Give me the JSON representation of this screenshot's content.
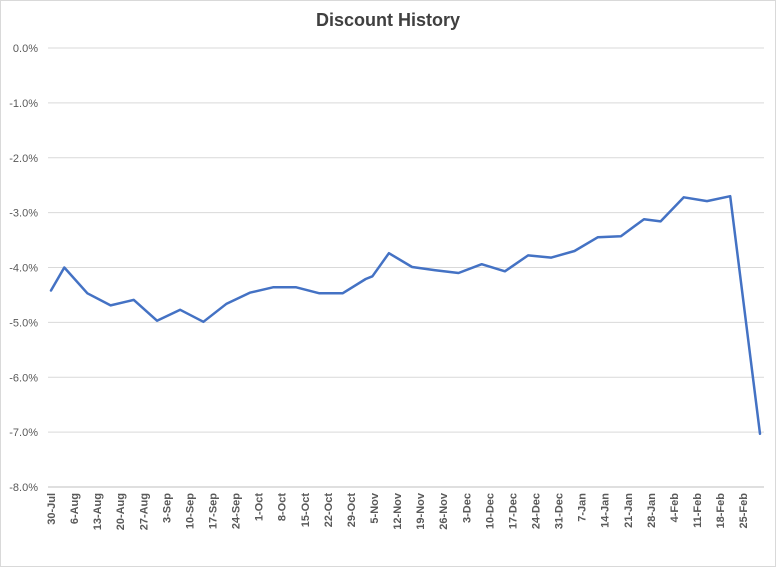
{
  "chart_data": {
    "type": "line",
    "title": "Discount History",
    "xlabel": "",
    "ylabel": "",
    "ylim": [
      -8.0,
      0.0
    ],
    "y_ticks": [
      "0.0%",
      "-1.0%",
      "-2.0%",
      "-3.0%",
      "-4.0%",
      "-5.0%",
      "-6.0%",
      "-7.0%",
      "-8.0%"
    ],
    "grid": true,
    "legend": "none",
    "x_ticks": [
      "30-Jul",
      "6-Aug",
      "13-Aug",
      "20-Aug",
      "27-Aug",
      "3-Sep",
      "10-Sep",
      "17-Sep",
      "24-Sep",
      "1-Oct",
      "8-Oct",
      "15-Oct",
      "22-Oct",
      "29-Oct",
      "5-Nov",
      "12-Nov",
      "19-Nov",
      "26-Nov",
      "3-Dec",
      "10-Dec",
      "17-Dec",
      "24-Dec",
      "31-Dec",
      "7-Jan",
      "14-Jan",
      "21-Jan",
      "28-Jan",
      "4-Feb",
      "11-Feb",
      "18-Feb",
      "25-Feb"
    ],
    "series": [
      {
        "color": "#4472c4",
        "points": [
          {
            "x": "2018-07-30",
            "y": -4.42
          },
          {
            "x": "2018-08-03",
            "y": -4.0
          },
          {
            "x": "2018-08-10",
            "y": -4.47
          },
          {
            "x": "2018-08-17",
            "y": -4.69
          },
          {
            "x": "2018-08-24",
            "y": -4.59
          },
          {
            "x": "2018-08-31",
            "y": -4.97
          },
          {
            "x": "2018-09-07",
            "y": -4.77
          },
          {
            "x": "2018-09-14",
            "y": -4.99
          },
          {
            "x": "2018-09-21",
            "y": -4.66
          },
          {
            "x": "2018-09-28",
            "y": -4.46
          },
          {
            "x": "2018-10-05",
            "y": -4.36
          },
          {
            "x": "2018-10-12",
            "y": -4.36
          },
          {
            "x": "2018-10-19",
            "y": -4.47
          },
          {
            "x": "2018-10-26",
            "y": -4.47
          },
          {
            "x": "2018-11-02",
            "y": -4.21
          },
          {
            "x": "2018-11-04",
            "y": -4.16
          },
          {
            "x": "2018-11-09",
            "y": -3.74
          },
          {
            "x": "2018-11-16",
            "y": -3.99
          },
          {
            "x": "2018-11-23",
            "y": -4.05
          },
          {
            "x": "2018-11-30",
            "y": -4.1
          },
          {
            "x": "2018-12-07",
            "y": -3.94
          },
          {
            "x": "2018-12-14",
            "y": -4.07
          },
          {
            "x": "2018-12-21",
            "y": -3.78
          },
          {
            "x": "2018-12-28",
            "y": -3.82
          },
          {
            "x": "2019-01-04",
            "y": -3.7
          },
          {
            "x": "2019-01-11",
            "y": -3.45
          },
          {
            "x": "2019-01-18",
            "y": -3.43
          },
          {
            "x": "2019-01-25",
            "y": -3.12
          },
          {
            "x": "2019-01-30",
            "y": -3.16
          },
          {
            "x": "2019-02-06",
            "y": -2.72
          },
          {
            "x": "2019-02-13",
            "y": -2.79
          },
          {
            "x": "2019-02-20",
            "y": -2.7
          },
          {
            "x": "2019-03-01",
            "y": -7.03
          }
        ]
      }
    ]
  }
}
